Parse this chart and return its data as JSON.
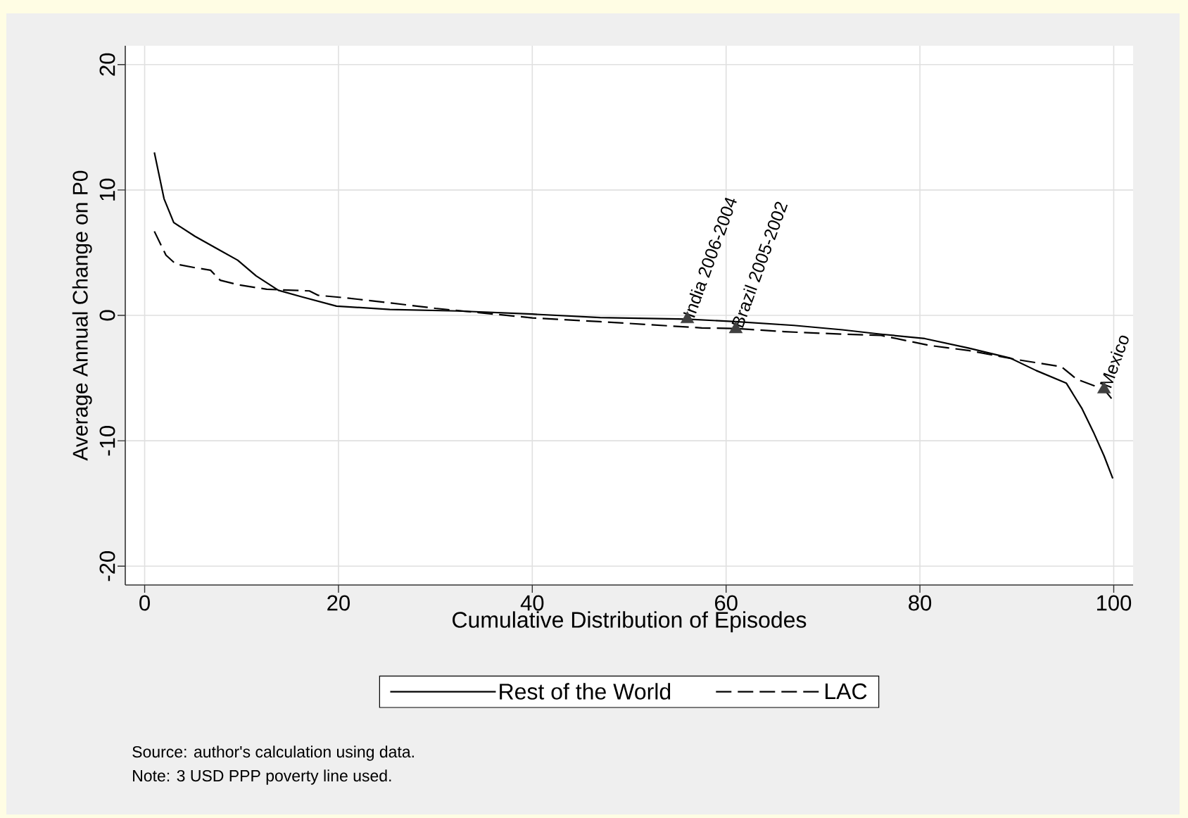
{
  "chart_data": {
    "type": "line",
    "xlabel": "Cumulative Distribution of Episodes",
    "ylabel": "Average Annual Change on P0",
    "xlim": [
      -2,
      102
    ],
    "ylim": [
      -21.5,
      21.5
    ],
    "xticks": [
      0,
      20,
      40,
      60,
      80,
      100
    ],
    "yticks": [
      -20,
      -10,
      0,
      10,
      20
    ],
    "grid": true,
    "legend": "bottom",
    "annotations": [
      {
        "text": "India 2006-2004",
        "x": 56,
        "y": -0.3
      },
      {
        "text": "Brazil 2005-2002",
        "x": 61,
        "y": -1.1
      },
      {
        "text": "Mexico",
        "x": 99,
        "y": -5.9
      },
      "Source: author's calculation using data.",
      "Note: 3 USD PPP poverty line used."
    ],
    "series": [
      {
        "name": "Rest of the World",
        "color": "#000000",
        "line_style": "solid",
        "marker": "none",
        "x": [
          1,
          2,
          3,
          5.2,
          7.5,
          9.6,
          11.5,
          13.8,
          16.1,
          19.8,
          25.3,
          32.3,
          40,
          47,
          56,
          61,
          67,
          72,
          76,
          80.5,
          85,
          89.3,
          92,
          95.1,
          96.7,
          97.9,
          99,
          99.9
        ],
        "values": [
          13.0,
          9.3,
          7.4,
          6.3,
          5.3,
          4.4,
          3.15,
          2.0,
          1.5,
          0.74,
          0.47,
          0.35,
          0.1,
          -0.18,
          -0.3,
          -0.5,
          -0.8,
          -1.15,
          -1.5,
          -1.85,
          -2.6,
          -3.4,
          -4.4,
          -5.4,
          -7.4,
          -9.3,
          -11.2,
          -13.0
        ]
      },
      {
        "name": "LAC",
        "color": "#000000",
        "line_style": "dashed",
        "marker": "none",
        "x": [
          1,
          2.2,
          3.2,
          5.2,
          6.8,
          7.8,
          9.6,
          12.6,
          17,
          17.9,
          20.7,
          25.3,
          30,
          40,
          47,
          57.5,
          61,
          66,
          72,
          76,
          81,
          85,
          89.8,
          94.6,
          96.2,
          99,
          99.9
        ],
        "values": [
          6.7,
          4.8,
          4.1,
          3.8,
          3.6,
          2.8,
          2.45,
          2.08,
          1.95,
          1.6,
          1.4,
          1.0,
          0.56,
          -0.2,
          -0.5,
          -1.0,
          -1.05,
          -1.3,
          -1.5,
          -1.6,
          -2.4,
          -2.8,
          -3.5,
          -4.1,
          -5.1,
          -5.9,
          -6.75
        ]
      },
      {
        "type": "scatter",
        "color": "#404040",
        "marker": "triangle",
        "x": [
          56,
          61,
          99
        ],
        "values": [
          -0.3,
          -1.1,
          -5.9
        ]
      }
    ]
  }
}
